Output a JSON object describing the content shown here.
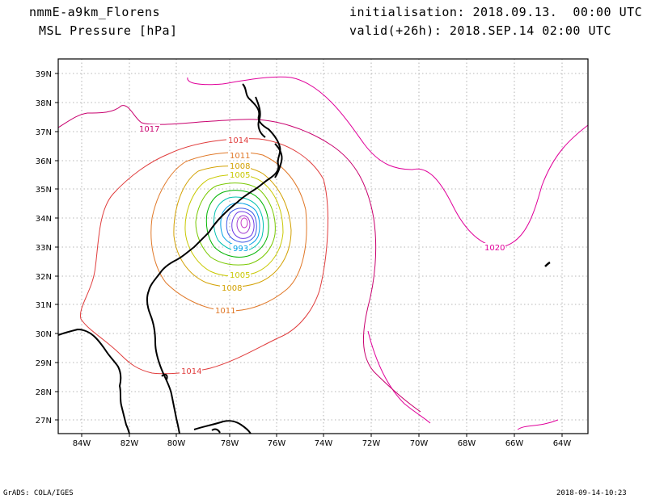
{
  "header": {
    "model": "nmmE-a9km_Florens",
    "variable": "MSL Pressure [hPa]",
    "init": "initialisation: 2018.09.13.  00:00 UTC",
    "valid": "valid(+26h): 2018.SEP.14 02:00 UTC"
  },
  "footer": {
    "credit": "GrADS: COLA/IGES",
    "timestamp": "2018-09-14-10:23"
  },
  "axes": {
    "lon_labels": [
      "84W",
      "82W",
      "80W",
      "78W",
      "76W",
      "74W",
      "72W",
      "70W",
      "68W",
      "66W",
      "64W"
    ],
    "lat_labels": [
      "39N",
      "38N",
      "37N",
      "36N",
      "35N",
      "34N",
      "33N",
      "32N",
      "31N",
      "30N",
      "29N",
      "28N",
      "27N"
    ]
  },
  "contour_labels": {
    "l1017": "1017",
    "l1014a": "1014",
    "l1014b": "1014",
    "l1020": "1020",
    "l1011a": "1011",
    "l1011b": "1011",
    "l1008a": "1008",
    "l1008b": "1008",
    "l1005a": "1005",
    "l1005b": "1005",
    "l993": "993"
  },
  "colors": {
    "c1020": "#e0009a",
    "c1017": "#c8006e",
    "c1014": "#e03c3c",
    "c1011": "#e07828",
    "c1008": "#d2a000",
    "c1005": "#c8c800",
    "c1002": "#78c800",
    "c999": "#00b400",
    "c996": "#00c0b0",
    "c993": "#00a0e6",
    "c990": "#3c5ae6",
    "c987": "#6e3ce6",
    "c984": "#a03cd2"
  }
}
